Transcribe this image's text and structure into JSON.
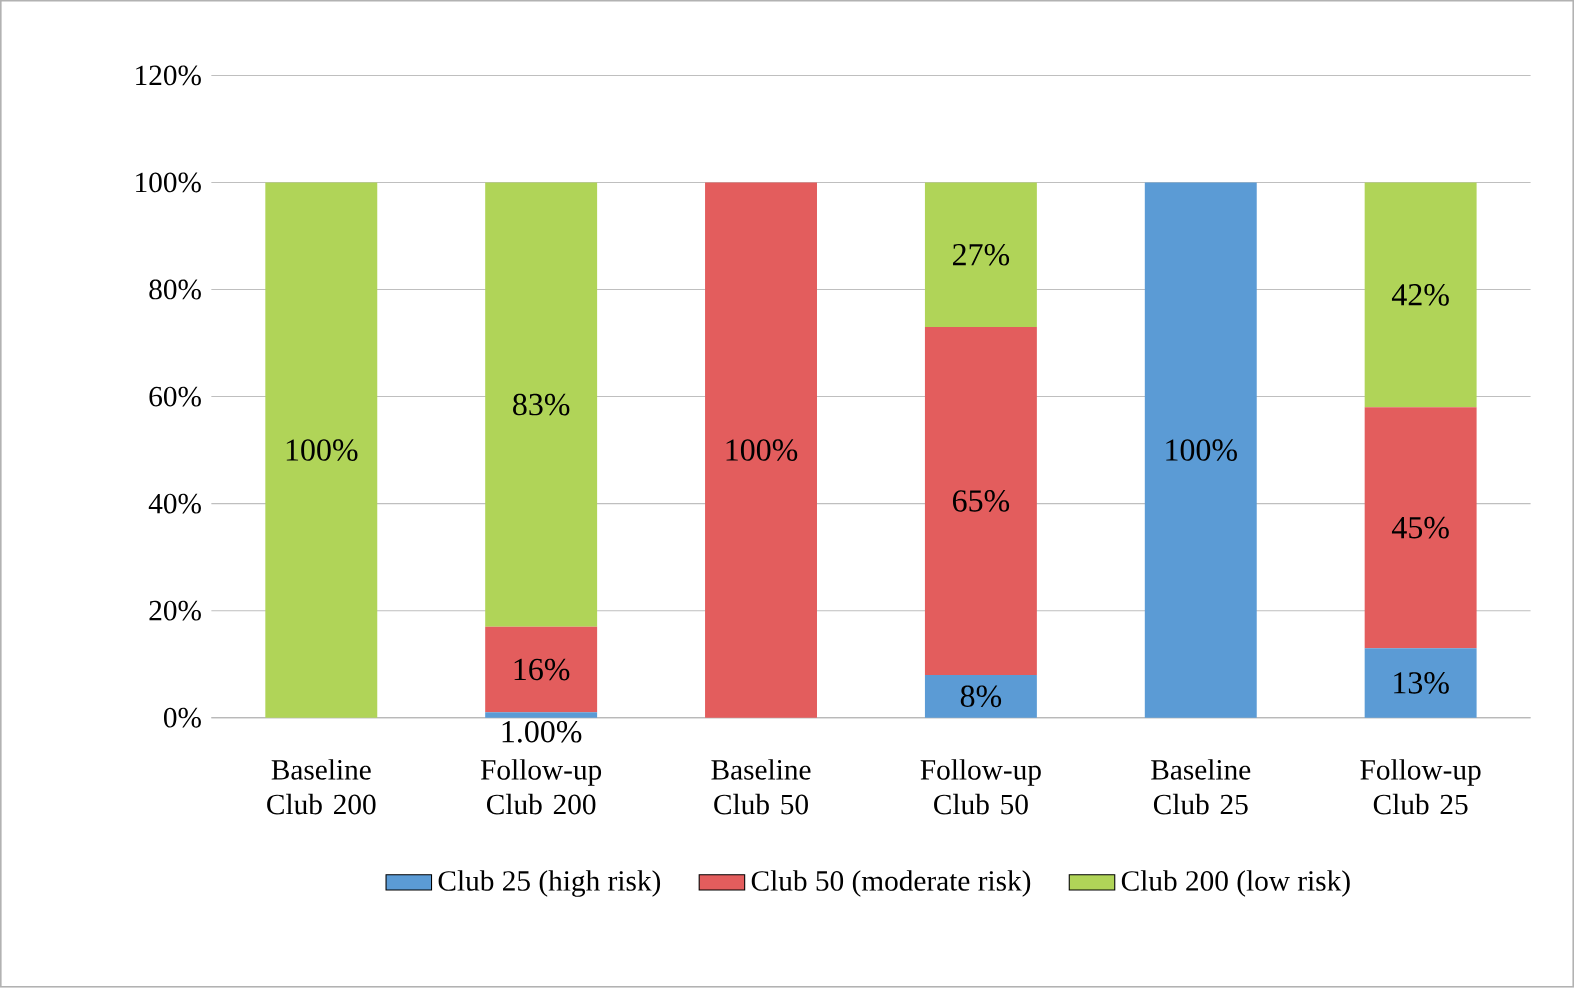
{
  "chart_data": {
    "type": "bar",
    "stacked": true,
    "categories": [
      "Baseline Club 200",
      "Follow-up Club 200",
      "Baseline Club 50",
      "Follow-up Club 50",
      "Baseline Club 25",
      "Follow-up Club 25"
    ],
    "series": [
      {
        "name": "Club 25 (high risk)",
        "color": "#5b9bd5",
        "values": [
          0,
          1,
          0,
          8,
          100,
          13
        ],
        "value_labels": [
          null,
          "1.00%",
          null,
          "8%",
          "100%",
          "13%"
        ]
      },
      {
        "name": "Club 50 (moderate risk)",
        "color": "#e35d5d",
        "values": [
          0,
          16,
          100,
          65,
          0,
          45
        ],
        "value_labels": [
          null,
          "16%",
          "100%",
          "65%",
          null,
          "45%"
        ]
      },
      {
        "name": "Club 200 (low risk)",
        "color": "#b0d458",
        "values": [
          100,
          83,
          0,
          27,
          0,
          42
        ],
        "value_labels": [
          "100%",
          "83%",
          null,
          "27%",
          null,
          "42%"
        ]
      }
    ],
    "ylim": [
      0,
      120
    ],
    "yticks": [
      {
        "value": 0,
        "label": "0%"
      },
      {
        "value": 20,
        "label": "20%"
      },
      {
        "value": 40,
        "label": "40%"
      },
      {
        "value": 60,
        "label": "60%"
      },
      {
        "value": 80,
        "label": "80%"
      },
      {
        "value": 100,
        "label": "100%"
      },
      {
        "value": 120,
        "label": "120%"
      }
    ],
    "grid": "y",
    "legend": "bottom"
  }
}
